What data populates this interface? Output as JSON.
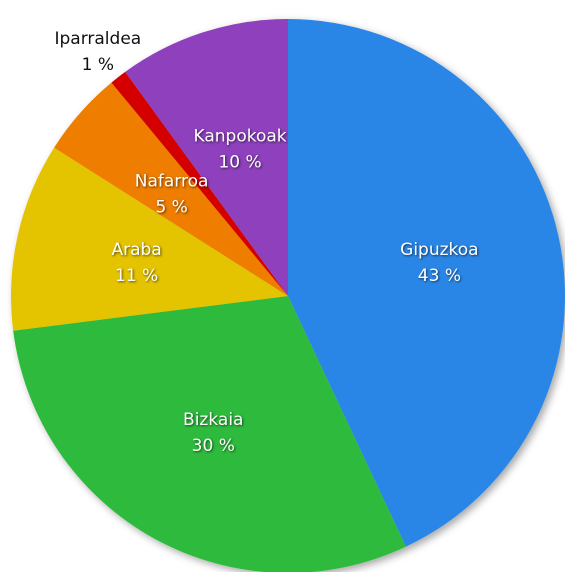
{
  "chart_data": {
    "type": "pie",
    "categories": [
      "Gipuzkoa",
      "Bizkaia",
      "Araba",
      "Nafarroa",
      "Iparraldea",
      "Kanpokoak"
    ],
    "values": [
      43,
      30,
      11,
      5,
      1,
      10
    ],
    "value_labels": [
      "43 %",
      "30 %",
      "11 %",
      "5 %",
      "1 %",
      "10 %"
    ],
    "colors": [
      "#2a86e6",
      "#2dbb3e",
      "#e4c300",
      "#ef7d00",
      "#d40000",
      "#8e3fbd"
    ]
  }
}
